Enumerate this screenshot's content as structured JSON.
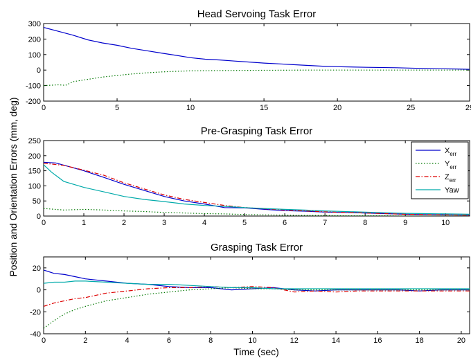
{
  "figure": {
    "ylabel": "Position and Orientation Errors (mm, deg)",
    "xlabel": "Time (sec)"
  },
  "chart_data": [
    {
      "type": "line",
      "title": "Head Servoing Task Error",
      "xlabel": "",
      "ylabel": "",
      "xlim": [
        0,
        29
      ],
      "ylim": [
        -200,
        300
      ],
      "xticks": [
        0,
        5,
        10,
        15,
        20,
        25,
        29
      ],
      "xtick_labels": [
        "0",
        "5",
        "10",
        "15",
        "20",
        "25",
        "29"
      ],
      "yticks": [
        -200,
        -100,
        0,
        100,
        200,
        300
      ],
      "grid": false,
      "series": [
        {
          "color": "#0000cc",
          "style": "solid",
          "x": [
            0,
            1,
            2,
            3,
            4,
            5,
            6,
            7,
            8,
            9,
            10,
            11,
            12,
            13,
            14,
            15,
            16,
            17,
            18,
            19,
            20,
            22,
            24,
            26,
            28,
            29
          ],
          "y": [
            275,
            250,
            225,
            195,
            175,
            160,
            140,
            125,
            110,
            95,
            80,
            70,
            65,
            58,
            52,
            45,
            40,
            35,
            30,
            25,
            22,
            18,
            15,
            10,
            7,
            5
          ]
        },
        {
          "color": "#007700",
          "style": "dotted",
          "x": [
            0,
            1,
            1.5,
            2,
            3,
            4,
            5,
            6,
            7,
            8,
            9,
            10,
            12,
            14,
            16,
            18,
            20,
            22,
            24,
            26,
            29
          ],
          "y": [
            -100,
            -95,
            -98,
            -75,
            -60,
            -45,
            -35,
            -25,
            -18,
            -12,
            -8,
            -5,
            -3,
            -2,
            -1,
            0,
            0,
            0,
            0,
            0,
            0
          ]
        }
      ]
    },
    {
      "type": "line",
      "title": "Pre-Grasping Task Error",
      "xlabel": "",
      "ylabel": "",
      "xlim": [
        0,
        10.6
      ],
      "ylim": [
        0,
        250
      ],
      "xticks": [
        0,
        1,
        2,
        3,
        4,
        5,
        6,
        7,
        8,
        9,
        10
      ],
      "yticks": [
        0,
        50,
        100,
        150,
        200,
        250
      ],
      "grid": false,
      "legend": "top-right",
      "series": [
        {
          "name": "X",
          "subscript": "err",
          "color": "#0000cc",
          "style": "solid",
          "x": [
            0,
            0.3,
            0.6,
            1,
            1.5,
            2,
            2.5,
            3,
            3.5,
            4,
            4.5,
            5,
            5.5,
            6,
            6.5,
            7,
            7.5,
            8,
            8.5,
            9,
            9.5,
            10,
            10.6
          ],
          "y": [
            178,
            176,
            165,
            150,
            128,
            105,
            85,
            65,
            50,
            40,
            28,
            27,
            22,
            18,
            16,
            13,
            12,
            10,
            8,
            6,
            5,
            4,
            3
          ]
        },
        {
          "name": "Y",
          "subscript": "err",
          "color": "#007700",
          "style": "dotted",
          "x": [
            0,
            0.5,
            1,
            1.5,
            2,
            2.5,
            3,
            3.5,
            4,
            4.5,
            5,
            5.5,
            6,
            6.5,
            7,
            7.5,
            8,
            8.5,
            9,
            9.5,
            10,
            10.6
          ],
          "y": [
            25,
            20,
            22,
            20,
            17,
            15,
            12,
            10,
            8,
            7,
            5,
            4,
            3,
            2,
            2,
            1,
            1,
            1,
            0,
            0,
            0,
            0
          ]
        },
        {
          "name": "Z",
          "subscript": "err",
          "color": "#dd0000",
          "style": "dashdot",
          "x": [
            0,
            0.5,
            1,
            1.5,
            2,
            2.5,
            3,
            3.5,
            4,
            4.5,
            5,
            5.5,
            6,
            6.5,
            7,
            7.5,
            8,
            8.5,
            9,
            9.5,
            10,
            10.6
          ],
          "y": [
            175,
            168,
            152,
            135,
            110,
            90,
            70,
            55,
            45,
            35,
            28,
            24,
            20,
            17,
            14,
            12,
            10,
            8,
            6,
            5,
            4,
            3
          ]
        },
        {
          "name": "Yaw",
          "subscript": "",
          "color": "#00aaaa",
          "style": "solid",
          "x": [
            0,
            0.2,
            0.5,
            1,
            1.5,
            2,
            2.5,
            3,
            3.5,
            4,
            4.5,
            5,
            5.5,
            6,
            6.5,
            7,
            7.5,
            8,
            8.5,
            9,
            9.5,
            10,
            10.6
          ],
          "y": [
            170,
            145,
            115,
            95,
            80,
            65,
            55,
            48,
            40,
            35,
            32,
            28,
            25,
            22,
            20,
            17,
            15,
            13,
            11,
            9,
            8,
            7,
            6
          ]
        }
      ]
    },
    {
      "type": "line",
      "title": "Grasping Task Error",
      "xlabel": "Time (sec)",
      "ylabel": "",
      "xlim": [
        0,
        20.4
      ],
      "ylim": [
        -40,
        30
      ],
      "xticks": [
        0,
        2,
        4,
        6,
        8,
        10,
        12,
        14,
        16,
        18,
        20
      ],
      "yticks": [
        -40,
        -20,
        0,
        20
      ],
      "grid": false,
      "series": [
        {
          "color": "#0000cc",
          "style": "solid",
          "x": [
            0,
            0.5,
            1,
            1.5,
            2,
            2.5,
            3,
            3.5,
            4,
            5,
            6,
            7,
            8,
            9,
            10,
            11,
            12,
            13,
            14,
            15,
            16,
            17,
            18,
            19,
            20,
            20.4
          ],
          "y": [
            18,
            15,
            14,
            12,
            10,
            9,
            8,
            7,
            6,
            5,
            3,
            2,
            2,
            0,
            1,
            2,
            0,
            -1,
            0,
            0,
            0,
            0,
            -1,
            0,
            0,
            0
          ]
        },
        {
          "color": "#007700",
          "style": "dotted",
          "x": [
            0,
            0.5,
            1,
            1.5,
            2,
            3,
            4,
            5,
            6,
            7,
            8,
            9,
            10,
            11,
            12,
            13,
            14,
            15,
            16,
            17,
            18,
            19,
            20,
            20.4
          ],
          "y": [
            -35,
            -28,
            -22,
            -18,
            -15,
            -10,
            -7,
            -4,
            -2,
            0,
            1,
            2,
            1,
            1,
            0,
            0,
            0,
            0,
            0,
            0,
            0,
            0,
            0,
            0
          ]
        },
        {
          "color": "#dd0000",
          "style": "dashdot",
          "x": [
            0,
            0.5,
            1,
            1.5,
            2,
            3,
            4,
            5,
            6,
            7,
            8,
            9,
            10,
            11,
            12,
            13,
            14,
            15,
            16,
            17,
            18,
            19,
            20,
            20.4
          ],
          "y": [
            -15,
            -12,
            -10,
            -8,
            -7,
            -3,
            -1,
            1,
            2,
            2,
            3,
            2,
            3,
            2,
            -2,
            -1,
            -2,
            -1,
            -1,
            -1,
            -1,
            -1,
            -1,
            -1
          ]
        },
        {
          "color": "#00aaaa",
          "style": "solid",
          "x": [
            0,
            0.5,
            1,
            1.5,
            2,
            3,
            4,
            5,
            6,
            7,
            8,
            9,
            10,
            11,
            12,
            13,
            14,
            15,
            16,
            17,
            18,
            19,
            20,
            20.4
          ],
          "y": [
            6,
            7,
            7,
            8,
            8,
            7,
            6,
            5,
            5,
            4,
            3,
            2,
            2,
            1,
            1,
            1,
            1,
            1,
            1,
            1,
            1,
            1,
            1,
            1
          ]
        }
      ]
    }
  ]
}
